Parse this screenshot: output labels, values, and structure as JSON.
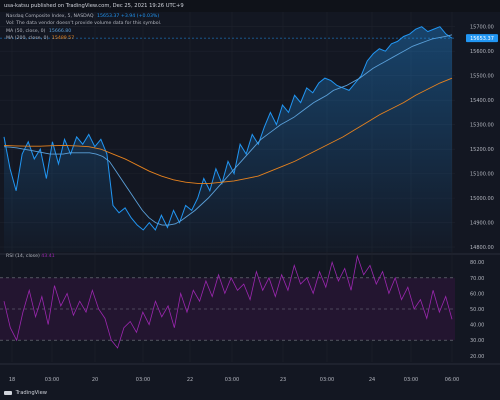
{
  "header": {
    "publisher": "usa-katsu published on TradingView.com, Dec 25, 2021 19:26 UTC+9"
  },
  "legend": {
    "symbol_label": "Nasdaq Composite Index, 5, NASDAQ",
    "symbol_value": "15653.37 +3.94 (+0.03%)",
    "vol_note": "Vol: The data vendor doesn't provide volume data for this symbol.",
    "ma50_label": "MA (50, close, 0)",
    "ma50_value": "15666.80",
    "ma200_label": "MA (200, close, 0)",
    "ma200_value": "15489.57"
  },
  "rsi_label": {
    "name": "RSI (14, close)",
    "value": "43.41"
  },
  "footer": {
    "brand": "TradingView"
  },
  "colors": {
    "background": "#131722",
    "price_line": "#2196f3",
    "ma50": "#5a9fd8",
    "ma200": "#e6821e",
    "rsi": "#9c27b0",
    "rsi_band": "#231530",
    "grid": "#1e222d",
    "axis_text": "#b2b5be"
  },
  "chart_data": [
    {
      "type": "area",
      "title": "Nasdaq Composite Index, 5, NASDAQ",
      "x_tick_labels": [
        "18",
        "03:00",
        "20",
        "03:00",
        "22",
        "03:00",
        "23",
        "03:00",
        "24",
        "03:00",
        "06:00"
      ],
      "y_tick_labels": [
        "14800.00",
        "14900.00",
        "15000.00",
        "15100.00",
        "15200.00",
        "15300.00",
        "15400.00",
        "15500.00",
        "15600.00",
        "15700.00"
      ],
      "ylim": [
        14780,
        15760
      ],
      "grid": true,
      "last_price_badge": "15653.37",
      "series": [
        {
          "name": "Nasdaq Composite Index",
          "values": [
            15250,
            15120,
            15030,
            15180,
            15230,
            15160,
            15200,
            15080,
            15230,
            15140,
            15240,
            15180,
            15250,
            15220,
            15260,
            15210,
            15240,
            15180,
            14970,
            14940,
            14960,
            14920,
            14890,
            14870,
            14900,
            14870,
            14930,
            14880,
            14950,
            14900,
            14970,
            14950,
            15000,
            15080,
            15030,
            15120,
            15060,
            15150,
            15100,
            15220,
            15180,
            15260,
            15220,
            15290,
            15350,
            15300,
            15380,
            15350,
            15420,
            15390,
            15450,
            15430,
            15470,
            15490,
            15480,
            15460,
            15450,
            15440,
            15470,
            15500,
            15560,
            15590,
            15610,
            15600,
            15630,
            15640,
            15660,
            15670,
            15690,
            15700,
            15680,
            15690,
            15700,
            15670,
            15653.37
          ]
        },
        {
          "name": "MA (50, close, 0)",
          "values": [
            15210,
            15208,
            15205,
            15200,
            15195,
            15190,
            15185,
            15180,
            15180,
            15180,
            15185,
            15185,
            15185,
            15185,
            15180,
            15170,
            15150,
            15110,
            15070,
            15030,
            14990,
            14950,
            14920,
            14900,
            14890,
            14890,
            14895,
            14910,
            14930,
            14950,
            14975,
            15000,
            15030,
            15060,
            15090,
            15120,
            15150,
            15180,
            15210,
            15240,
            15260,
            15280,
            15300,
            15315,
            15330,
            15350,
            15370,
            15390,
            15405,
            15420,
            15440,
            15450,
            15460,
            15475,
            15490,
            15510,
            15530,
            15545,
            15560,
            15575,
            15590,
            15605,
            15620,
            15630,
            15640,
            15650,
            15655,
            15660,
            15666.8
          ]
        },
        {
          "name": "MA (200, close, 0)",
          "values": [
            15215,
            15213,
            15212,
            15212,
            15214,
            15215,
            15213,
            15210,
            15200,
            15180,
            15160,
            15135,
            15110,
            15090,
            15075,
            15065,
            15060,
            15060,
            15065,
            15070,
            15080,
            15090,
            15110,
            15130,
            15150,
            15175,
            15200,
            15225,
            15250,
            15280,
            15310,
            15340,
            15365,
            15390,
            15420,
            15445,
            15470,
            15489.57
          ]
        }
      ]
    },
    {
      "type": "line",
      "title": "RSI (14, close)",
      "y_tick_labels": [
        "20.00",
        "30.00",
        "40.00",
        "50.00",
        "60.00",
        "70.00",
        "80.00"
      ],
      "ylim": [
        16,
        84
      ],
      "grid": true,
      "bands": [
        30,
        50,
        70
      ],
      "series": [
        {
          "name": "RSI (14, close)",
          "values": [
            55,
            38,
            30,
            48,
            62,
            45,
            58,
            40,
            65,
            52,
            60,
            46,
            55,
            48,
            62,
            50,
            44,
            30,
            25,
            38,
            42,
            35,
            48,
            40,
            55,
            45,
            52,
            38,
            60,
            48,
            62,
            55,
            68,
            58,
            72,
            60,
            70,
            62,
            66,
            56,
            74,
            62,
            70,
            58,
            72,
            62,
            78,
            66,
            70,
            60,
            74,
            64,
            80,
            68,
            76,
            62,
            84,
            72,
            78,
            66,
            74,
            60,
            70,
            56,
            64,
            50,
            56,
            44,
            62,
            48,
            58,
            43.41
          ]
        }
      ]
    }
  ]
}
